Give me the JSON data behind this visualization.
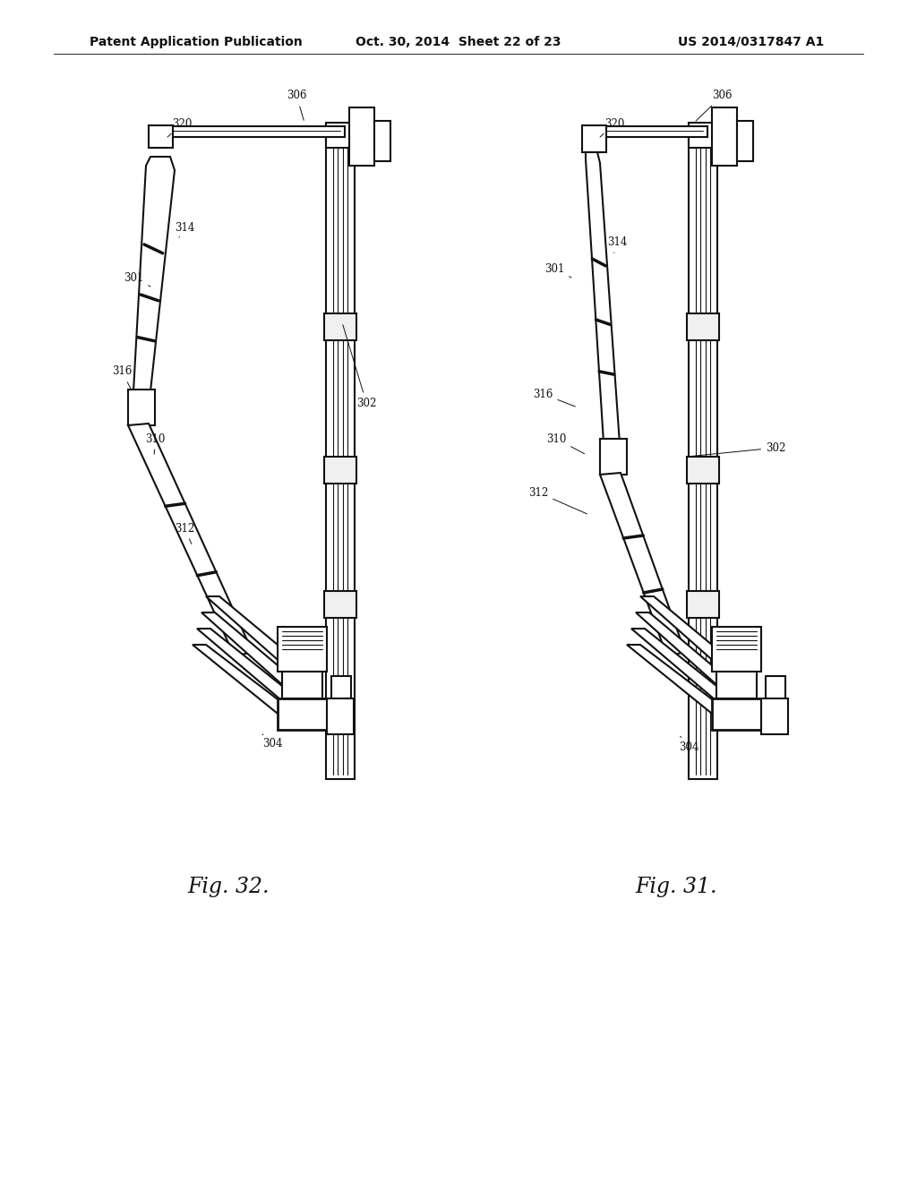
{
  "bg_color": "#ffffff",
  "header_left": "Patent Application Publication",
  "header_center": "Oct. 30, 2014  Sheet 22 of 23",
  "header_right": "US 2014/0317847 A1",
  "fig32_label": "Fig. 32.",
  "fig31_label": "Fig. 31.",
  "text_color": "#111111",
  "line_color": "#111111",
  "header_fontsize": 10,
  "label_fontsize": 9
}
